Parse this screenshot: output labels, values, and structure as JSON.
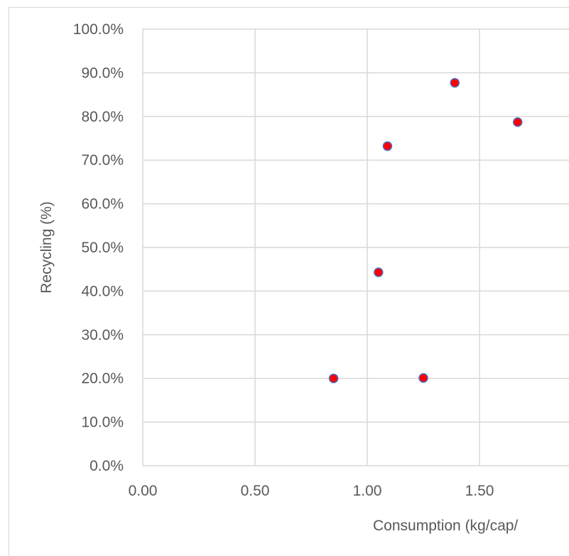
{
  "chart_data": {
    "type": "scatter",
    "title": "",
    "xlabel": "Consumption (kg/cap/",
    "ylabel": "Recycling (%)",
    "xlim": [
      0,
      1.8
    ],
    "ylim": [
      0,
      100
    ],
    "x_ticks": [
      "0.00",
      "0.50",
      "1.00",
      "1.50"
    ],
    "y_ticks": [
      "0.0%",
      "10.0%",
      "20.0%",
      "30.0%",
      "40.0%",
      "50.0%",
      "60.0%",
      "70.0%",
      "80.0%",
      "90.0%",
      "100.0%"
    ],
    "grid": true,
    "series": [
      {
        "x": [
          0.85,
          1.25,
          1.05,
          1.09,
          1.39,
          1.67
        ],
        "y": [
          20.0,
          20.1,
          44.3,
          73.2,
          87.7,
          78.7
        ]
      }
    ],
    "colors": {
      "marker_fill": "#ff0000",
      "marker_stroke": "#4472c4",
      "grid": "#d9d9d9",
      "text": "#595959"
    }
  }
}
